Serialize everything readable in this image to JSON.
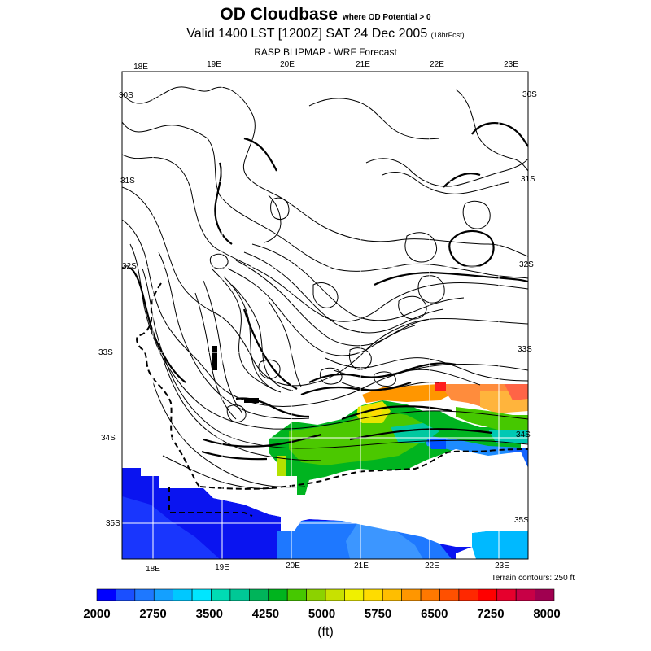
{
  "title": {
    "main": "OD Cloudbase",
    "main_note": "where OD Potential > 0",
    "valid": "Valid 1400 LST [1200Z] SAT 24 Dec 2005",
    "forecast_tag": "(18hrFcst)",
    "subtitle": "RASP BLIPMAP - WRF Forecast"
  },
  "map": {
    "top_lon_labels": [
      "18E",
      "19E",
      "20E",
      "21E",
      "22E",
      "23E"
    ],
    "bottom_lon_labels": [
      "18E",
      "19E",
      "20E",
      "21E",
      "22E",
      "23E"
    ],
    "lat_labels": [
      "30S",
      "31S",
      "32S",
      "33S",
      "34S",
      "35S"
    ],
    "terrain_note": "Terrain contours: 250 ft"
  },
  "colorbar": {
    "colors": [
      "#0000ff",
      "#1a4fff",
      "#1e78ff",
      "#14a0ff",
      "#00c8ff",
      "#00e6ff",
      "#00dcb4",
      "#00c896",
      "#00b45a",
      "#00b41e",
      "#46c800",
      "#8cd200",
      "#c8e100",
      "#f0f000",
      "#ffdc00",
      "#ffbe00",
      "#ff9600",
      "#ff7800",
      "#ff5000",
      "#ff2800",
      "#ff0000",
      "#e6002d",
      "#c80046",
      "#a00050"
    ],
    "tick_labels": [
      "2000",
      "2750",
      "3500",
      "4250",
      "5000",
      "5750",
      "6500",
      "7250",
      "8000"
    ],
    "unit": "(ft)"
  }
}
